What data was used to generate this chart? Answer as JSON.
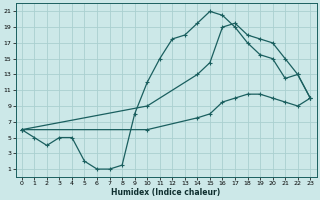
{
  "xlabel": "Humidex (Indice chaleur)",
  "bg_color": "#cce8e8",
  "line_color": "#1a5f5f",
  "grid_color": "#aad0d0",
  "xlim": [
    -0.5,
    23.5
  ],
  "ylim": [
    0,
    22
  ],
  "xticks": [
    0,
    1,
    2,
    3,
    4,
    5,
    6,
    7,
    8,
    9,
    10,
    11,
    12,
    13,
    14,
    15,
    16,
    17,
    18,
    19,
    20,
    21,
    22,
    23
  ],
  "yticks": [
    1,
    3,
    5,
    7,
    9,
    11,
    13,
    15,
    17,
    19,
    21
  ],
  "line1_x": [
    0,
    1,
    2,
    3,
    4,
    5,
    6,
    7,
    8,
    9,
    10,
    11,
    12,
    13,
    14,
    15,
    16,
    17,
    18,
    19,
    20,
    21,
    22,
    23
  ],
  "line1_y": [
    6,
    5,
    4,
    5,
    5,
    2,
    1,
    1,
    1.5,
    8,
    12,
    15,
    17.5,
    18,
    19.5,
    21,
    20.5,
    19,
    17,
    15.5,
    15,
    12.5,
    13,
    10
  ],
  "line2_x": [
    0,
    10,
    14,
    15,
    16,
    17,
    18,
    19,
    20,
    21,
    22,
    23
  ],
  "line2_y": [
    6,
    9,
    13,
    14.5,
    19,
    19.5,
    18,
    17.5,
    17,
    15,
    13,
    10
  ],
  "line3_x": [
    0,
    10,
    14,
    15,
    16,
    17,
    18,
    19,
    20,
    21,
    22,
    23
  ],
  "line3_y": [
    6,
    6,
    7.5,
    8,
    9.5,
    10,
    10.5,
    10.5,
    10,
    9.5,
    9,
    10
  ]
}
